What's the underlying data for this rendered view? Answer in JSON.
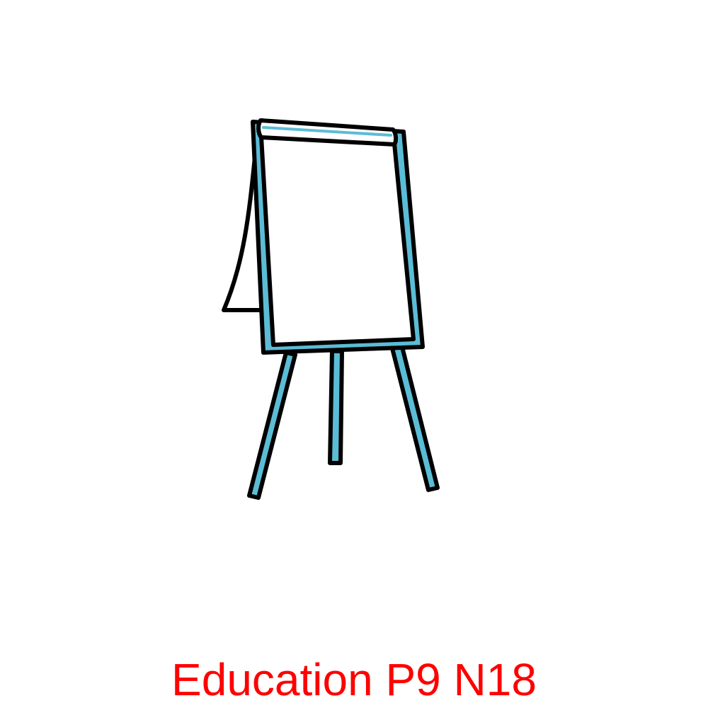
{
  "caption": "Education P9 N18",
  "colors": {
    "caption": "#ff0000",
    "frame_fill": "#5bbcd6",
    "outline": "#000000",
    "paper": "#ffffff"
  },
  "icon": "flipchart-easel-icon"
}
